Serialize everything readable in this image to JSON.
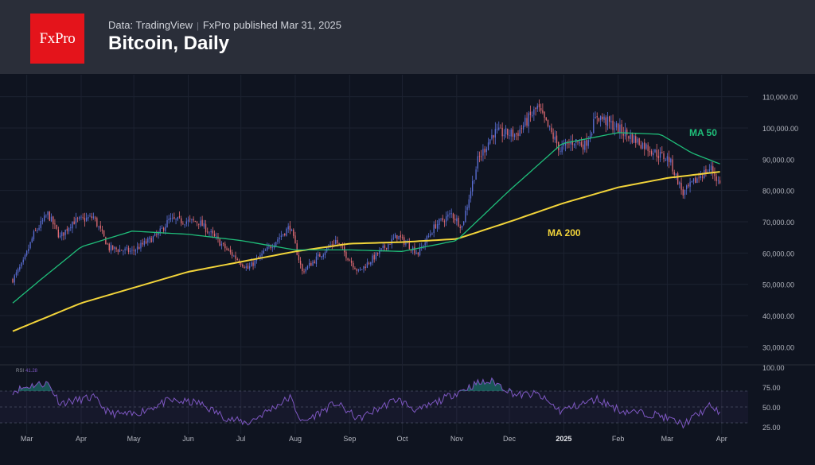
{
  "header": {
    "logo_text": "FxPro",
    "source": "Data: TradingView",
    "separator": "|",
    "published": "FxPro published Mar 31, 2025",
    "title": "Bitcoin, Daily"
  },
  "colors": {
    "background": "#0f1420",
    "header_bg": "#2a2e39",
    "logo_bg": "#e4141b",
    "candle_up": "#5b6fd6",
    "candle_down": "#e06b73",
    "ma50": "#1fbf7a",
    "ma200": "#f2d43a",
    "rsi_line": "#7e57c2",
    "grid": "#1c2230"
  },
  "chart_data": [
    {
      "type": "candlestick",
      "title": "Bitcoin, Daily",
      "ylim": [
        25000,
        115000
      ],
      "y_ticks": [
        "110,000.00",
        "100,000.00",
        "90,000.00",
        "80,000.00",
        "70,000.00",
        "60,000.00",
        "50,000.00",
        "40,000.00",
        "30,000.00"
      ],
      "y_tick_values": [
        110000,
        100000,
        90000,
        80000,
        70000,
        60000,
        50000,
        40000,
        30000
      ],
      "x_ticks": [
        "Mar",
        "Apr",
        "May",
        "Jun",
        "Jul",
        "Aug",
        "Sep",
        "Oct",
        "Nov",
        "Dec",
        "2025",
        "Feb",
        "Mar",
        "Apr"
      ],
      "x_tick_dates": [
        "2024-03-01",
        "2024-04-01",
        "2024-05-01",
        "2024-06-01",
        "2024-07-01",
        "2024-08-01",
        "2024-09-01",
        "2024-10-01",
        "2024-11-01",
        "2024-12-01",
        "2025-01-01",
        "2025-02-01",
        "2025-03-01",
        "2025-04-01"
      ],
      "x_range": [
        "2024-02-22",
        "2025-04-07"
      ],
      "price_anchors": [
        [
          "2024-02-22",
          51500
        ],
        [
          "2024-02-28",
          57000
        ],
        [
          "2024-03-05",
          66000
        ],
        [
          "2024-03-13",
          72500
        ],
        [
          "2024-03-20",
          65000
        ],
        [
          "2024-03-27",
          70000
        ],
        [
          "2024-04-08",
          71500
        ],
        [
          "2024-04-17",
          61500
        ],
        [
          "2024-04-30",
          60500
        ],
        [
          "2024-05-15",
          66000
        ],
        [
          "2024-05-21",
          70500
        ],
        [
          "2024-06-07",
          70000
        ],
        [
          "2024-06-24",
          60500
        ],
        [
          "2024-07-05",
          55000
        ],
        [
          "2024-07-14",
          60000
        ],
        [
          "2024-07-29",
          68500
        ],
        [
          "2024-08-05",
          54000
        ],
        [
          "2024-08-24",
          64000
        ],
        [
          "2024-09-06",
          54000
        ],
        [
          "2024-09-28",
          65500
        ],
        [
          "2024-10-10",
          60000
        ],
        [
          "2024-10-20",
          69000
        ],
        [
          "2024-10-29",
          72500
        ],
        [
          "2024-11-04",
          68500
        ],
        [
          "2024-11-13",
          89500
        ],
        [
          "2024-11-22",
          98500
        ],
        [
          "2024-12-05",
          98000
        ],
        [
          "2024-12-17",
          106500
        ],
        [
          "2024-12-30",
          93000
        ],
        [
          "2025-01-07",
          96000
        ],
        [
          "2025-01-13",
          94500
        ],
        [
          "2025-01-20",
          104000
        ],
        [
          "2025-02-03",
          99000
        ],
        [
          "2025-02-24",
          91500
        ],
        [
          "2025-03-02",
          90000
        ],
        [
          "2025-03-10",
          79000
        ],
        [
          "2025-03-20",
          85000
        ],
        [
          "2025-03-26",
          87000
        ],
        [
          "2025-03-31",
          82000
        ]
      ],
      "ma50": [
        [
          "2024-02-22",
          44000
        ],
        [
          "2024-03-10",
          52000
        ],
        [
          "2024-04-01",
          62000
        ],
        [
          "2024-04-30",
          67000
        ],
        [
          "2024-06-01",
          66000
        ],
        [
          "2024-07-01",
          64000
        ],
        [
          "2024-08-01",
          61000
        ],
        [
          "2024-09-01",
          61000
        ],
        [
          "2024-10-01",
          60500
        ],
        [
          "2024-11-01",
          64000
        ],
        [
          "2024-12-01",
          80000
        ],
        [
          "2024-12-31",
          95000
        ],
        [
          "2025-02-01",
          98500
        ],
        [
          "2025-02-25",
          98000
        ],
        [
          "2025-03-15",
          92000
        ],
        [
          "2025-03-31",
          88500
        ]
      ],
      "ma200": [
        [
          "2024-02-22",
          35000
        ],
        [
          "2024-04-01",
          44000
        ],
        [
          "2024-06-01",
          54000
        ],
        [
          "2024-08-01",
          60500
        ],
        [
          "2024-09-01",
          63000
        ],
        [
          "2024-10-01",
          63500
        ],
        [
          "2024-11-01",
          64500
        ],
        [
          "2024-12-01",
          70000
        ],
        [
          "2025-01-01",
          76000
        ],
        [
          "2025-02-01",
          81000
        ],
        [
          "2025-03-01",
          84000
        ],
        [
          "2025-03-31",
          86000
        ]
      ],
      "annotations": {
        "ma50_label": "MA 50",
        "ma200_label": "MA 200"
      }
    },
    {
      "type": "line",
      "ylim": [
        20,
        100
      ],
      "y_ticks": [
        "100.00",
        "75.00",
        "50.00",
        "25.00"
      ],
      "y_tick_values": [
        100,
        75,
        50,
        25
      ],
      "bands": [
        30,
        70
      ],
      "legend_label": "RSI",
      "legend_value": "41.28",
      "rsi_anchors": [
        [
          "2024-02-22",
          70
        ],
        [
          "2024-03-05",
          78
        ],
        [
          "2024-03-13",
          80
        ],
        [
          "2024-03-20",
          55
        ],
        [
          "2024-04-08",
          62
        ],
        [
          "2024-04-17",
          42
        ],
        [
          "2024-04-30",
          40
        ],
        [
          "2024-05-21",
          58
        ],
        [
          "2024-06-07",
          55
        ],
        [
          "2024-06-24",
          35
        ],
        [
          "2024-07-05",
          30
        ],
        [
          "2024-07-29",
          62
        ],
        [
          "2024-08-05",
          30
        ],
        [
          "2024-08-24",
          55
        ],
        [
          "2024-09-06",
          35
        ],
        [
          "2024-09-28",
          60
        ],
        [
          "2024-10-10",
          45
        ],
        [
          "2024-10-29",
          65
        ],
        [
          "2024-11-13",
          80
        ],
        [
          "2024-11-22",
          82
        ],
        [
          "2024-12-05",
          65
        ],
        [
          "2024-12-17",
          66
        ],
        [
          "2024-12-30",
          45
        ],
        [
          "2025-01-20",
          60
        ],
        [
          "2025-02-03",
          45
        ],
        [
          "2025-02-24",
          40
        ],
        [
          "2025-03-10",
          28
        ],
        [
          "2025-03-26",
          52
        ],
        [
          "2025-03-31",
          41
        ]
      ]
    }
  ]
}
